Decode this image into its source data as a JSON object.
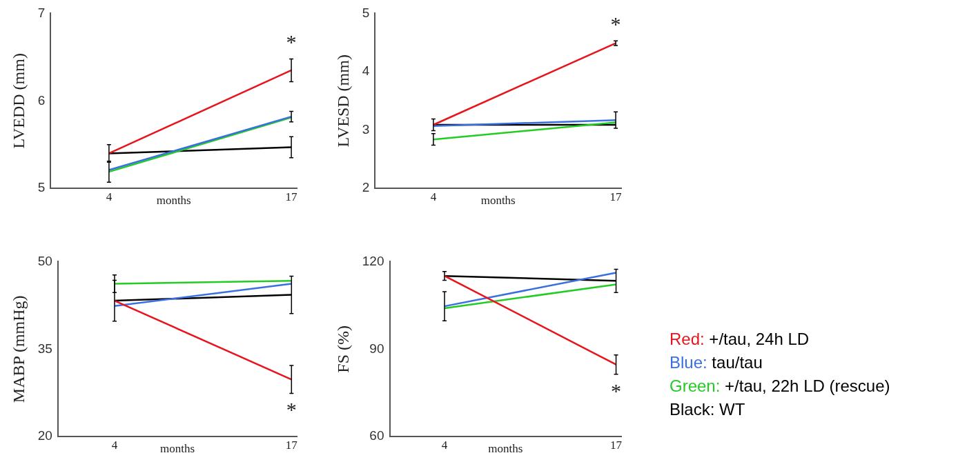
{
  "chart_data": [
    {
      "type": "line",
      "ylabel": "LVEDD (mm)",
      "xlabel": "months",
      "categories": [
        "4",
        "17"
      ],
      "ylim": [
        5,
        7
      ],
      "yticks": [
        5,
        6,
        7
      ],
      "grid": false,
      "legend": false,
      "series": [
        {
          "color": "#e8141c",
          "values": [
            5.4,
            6.35
          ],
          "errors": [
            null,
            0.13
          ]
        },
        {
          "color": "#3a6fe0",
          "values": [
            5.21,
            5.82
          ],
          "errors": [
            null,
            0.06
          ]
        },
        {
          "color": "#22cc22",
          "values": [
            5.19,
            5.81
          ],
          "errors": [
            0.12,
            null
          ]
        },
        {
          "color": "#000000",
          "values": [
            5.4,
            5.47
          ],
          "errors": [
            0.1,
            0.12
          ]
        }
      ],
      "annotations": [
        "*"
      ]
    },
    {
      "type": "line",
      "ylabel": "LVESD (mm)",
      "xlabel": "months",
      "categories": [
        "4",
        "17"
      ],
      "ylim": [
        2,
        5
      ],
      "yticks": [
        2,
        3,
        4,
        5
      ],
      "grid": false,
      "legend": false,
      "series": [
        {
          "color": "#e8141c",
          "values": [
            3.09,
            4.49
          ],
          "errors": [
            null,
            0.04
          ]
        },
        {
          "color": "#3a6fe0",
          "values": [
            3.07,
            3.17
          ],
          "errors": [
            null,
            0.14
          ]
        },
        {
          "color": "#22cc22",
          "values": [
            2.84,
            3.13
          ],
          "errors": [
            0.1,
            null
          ]
        },
        {
          "color": "#000000",
          "values": [
            3.09,
            3.09
          ],
          "errors": [
            0.1,
            null
          ]
        }
      ],
      "annotations": [
        "*"
      ]
    },
    {
      "type": "line",
      "ylabel": "MABP (mmHg)",
      "xlabel": "months",
      "categories": [
        "4",
        "17"
      ],
      "ylim": [
        20,
        50
      ],
      "yticks": [
        20,
        35,
        50
      ],
      "grid": false,
      "legend": false,
      "series": [
        {
          "color": "#e8141c",
          "values": [
            43.3,
            29.8
          ],
          "errors": [
            null,
            2.4
          ]
        },
        {
          "color": "#3a6fe0",
          "values": [
            42.4,
            46.2
          ],
          "errors": [
            null,
            null
          ]
        },
        {
          "color": "#22cc22",
          "values": [
            46.2,
            46.7
          ],
          "errors": [
            1.5,
            null
          ]
        },
        {
          "color": "#000000",
          "values": [
            43.3,
            44.3
          ],
          "errors": [
            3.5,
            3.2
          ]
        }
      ],
      "annotations": [
        "*"
      ]
    },
    {
      "type": "line",
      "ylabel": "FS (%)",
      "xlabel": "months",
      "categories": [
        "4",
        "17"
      ],
      "ylim": [
        60,
        120
      ],
      "yticks": [
        60,
        90,
        120
      ],
      "grid": false,
      "legend": "right",
      "series": [
        {
          "name": "Red: +/tau, 24h LD",
          "color": "#e8141c",
          "values": [
            115.1,
            84.7
          ],
          "errors": [
            null,
            3.3
          ]
        },
        {
          "name": "Blue: tau/tau",
          "color": "#3a6fe0",
          "values": [
            104.7,
            116.2
          ],
          "errors": [
            5,
            null
          ]
        },
        {
          "name": "Green: +/tau, 22h LD (rescue)",
          "color": "#22cc22",
          "values": [
            104,
            112.2
          ],
          "errors": [
            null,
            null
          ]
        },
        {
          "name": "Black: WT",
          "color": "#000000",
          "values": [
            115.1,
            113.4
          ],
          "errors": [
            1.5,
            4
          ]
        }
      ],
      "annotations": [
        "*"
      ]
    }
  ]
}
